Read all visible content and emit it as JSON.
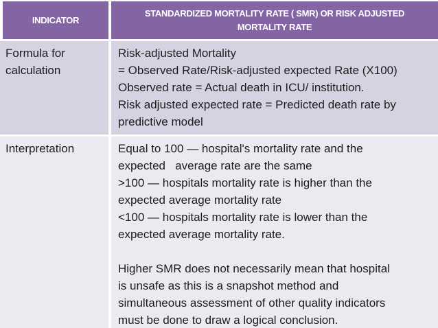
{
  "table": {
    "header": {
      "indicator": "INDICATOR",
      "smr_title": "STANDARDIZED MORTALITY RATE ( SMR) OR RISK ADJUSTED\nMORTALITY RATE"
    },
    "rows": [
      {
        "label": "Formula for\ncalculation",
        "content": "Risk-adjusted Mortality\n= Observed Rate/Risk-adjusted expected Rate (X100)\nObserved rate = Actual death in ICU/ institution.\nRisk adjusted expected rate = Predicted death rate by\npredictive model"
      },
      {
        "label": "Interpretation",
        "content": "Equal to 100 — hospital's mortality rate and the\nexpected   average rate are the same\n>100 — hospitals mortality rate is higher than the\nexpected average mortality rate\n<100 — hospitals mortality rate is lower than the\nexpected average mortality rate.\n\nHigher SMR does not necessarily mean that hospital\nis unsafe as this is a snapshot method and\nsimultaneous assessment of other quality indicators\nmust be done to draw a logical conclusion."
      }
    ],
    "colors": {
      "header_bg": "#8365A4",
      "header_text": "#FFFFFF",
      "row_formula_bg": "#D6D2E1",
      "row_interpretation_bg": "#EBEAF1",
      "body_text": "#1C1C1C",
      "separator": "#FDFDFE"
    }
  }
}
